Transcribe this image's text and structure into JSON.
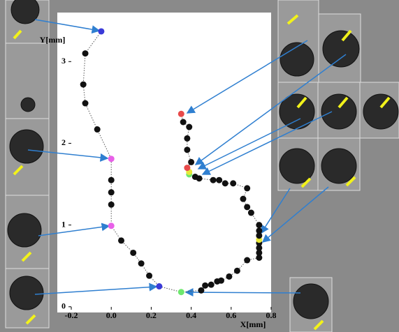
{
  "chart_data": {
    "type": "scatter",
    "x_label": "X[mm]",
    "y_label": "Y[mm]",
    "xlim": [
      -0.27,
      0.8
    ],
    "ylim": [
      -0.07,
      3.6
    ],
    "xticks": [
      -0.2,
      {
        "value": 0,
        "label": "0.0"
      },
      0.2,
      0.4,
      0.6,
      0.8
    ],
    "yticks": [
      0,
      1,
      2,
      3
    ],
    "connected": true,
    "line_color": "#555555",
    "series": [
      {
        "x": [
          -0.05,
          -0.13,
          -0.14,
          -0.13,
          -0.07,
          0,
          0,
          0,
          0,
          0,
          0.05,
          0.11,
          0.15,
          0.19,
          0.24,
          0.35,
          0.45,
          0.47,
          0.5,
          0.53,
          0.55,
          0.59,
          0.63,
          0.68,
          0.74,
          0.74,
          0.74,
          0.74,
          0.74,
          0.74,
          0.74,
          0.74,
          0.7,
          0.68,
          0.66,
          0.68,
          0.61,
          0.57,
          0.54,
          0.51,
          0.44,
          0.42,
          0.39,
          0.39,
          0.38,
          0.4,
          0.38,
          0.38,
          0.39,
          0.36,
          0.35
        ],
        "values": [
          3.37,
          3.1,
          2.72,
          2.49,
          2.17,
          1.81,
          1.55,
          1.4,
          1.25,
          0.99,
          0.81,
          0.66,
          0.53,
          0.38,
          0.25,
          0.18,
          0.2,
          0.26,
          0.27,
          0.31,
          0.32,
          0.37,
          0.44,
          0.57,
          0.6,
          0.66,
          0.72,
          0.78,
          0.82,
          0.87,
          0.93,
          1.0,
          1.15,
          1.22,
          1.32,
          1.45,
          1.51,
          1.51,
          1.55,
          1.55,
          1.57,
          1.59,
          1.62,
          1.65,
          1.7,
          1.77,
          1.92,
          2.06,
          2.2,
          2.26,
          2.36
        ],
        "colors": [
          "#3a3ad8",
          "#111111",
          "#111111",
          "#111111",
          "#111111",
          "#e860e8",
          "#111111",
          "#111111",
          "#111111",
          "#e860e8",
          "#111111",
          "#111111",
          "#111111",
          "#111111",
          "#3a3ad8",
          "#6ee86e",
          "#111111",
          "#111111",
          "#111111",
          "#111111",
          "#111111",
          "#111111",
          "#111111",
          "#111111",
          "#111111",
          "#111111",
          "#111111",
          "#111111",
          "#e8e83a",
          "#111111",
          "#111111",
          "#111111",
          "#111111",
          "#111111",
          "#111111",
          "#111111",
          "#111111",
          "#111111",
          "#111111",
          "#111111",
          "#111111",
          "#111111",
          "#6ee86e",
          "#e8e83a",
          "#e84a4a",
          "#111111",
          "#111111",
          "#111111",
          "#111111",
          "#111111",
          "#e84a4a"
        ]
      }
    ]
  }
}
